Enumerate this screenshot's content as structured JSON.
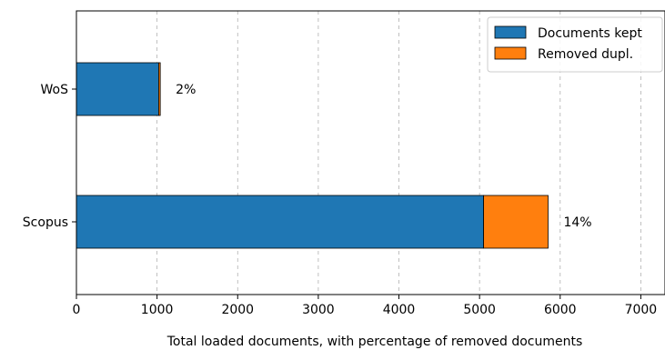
{
  "chart_data": {
    "type": "bar",
    "orientation": "horizontal",
    "stacked": true,
    "categories": [
      "WoS",
      "Scopus"
    ],
    "series": [
      {
        "name": "Documents kept",
        "values": [
          1020,
          5050
        ],
        "color": "#1f77b4"
      },
      {
        "name": "Removed dupl.",
        "values": [
          20,
          800
        ],
        "color": "#ff7f0e"
      }
    ],
    "data_labels": [
      "2%",
      "14%"
    ],
    "title": "",
    "xlabel": "Total loaded documents, with percentage of removed documents",
    "ylabel": "",
    "xlim": [
      0,
      7300
    ],
    "xticks": [
      0,
      1000,
      2000,
      3000,
      4000,
      5000,
      6000,
      7000
    ],
    "xtick_labels": [
      "0",
      "1000",
      "2000",
      "3000",
      "4000",
      "5000",
      "6000",
      "7000"
    ],
    "grid": "x, dashed",
    "legend_position": "top-right"
  }
}
